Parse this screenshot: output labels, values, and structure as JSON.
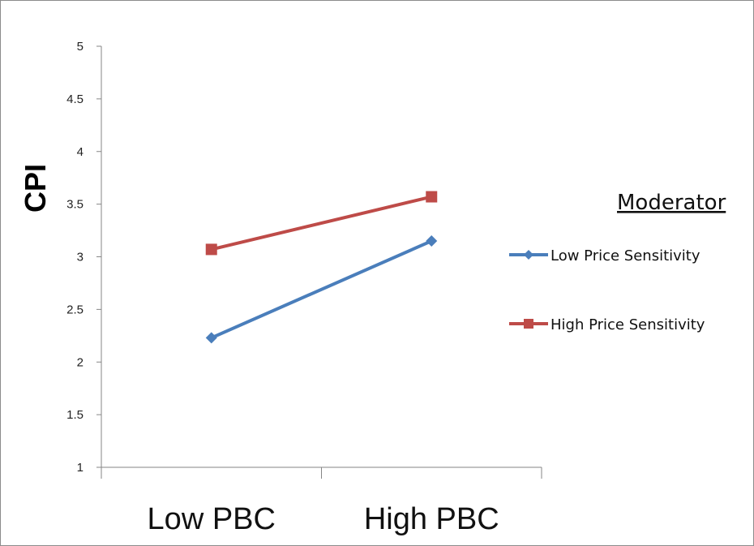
{
  "chart_data": {
    "type": "line",
    "categories": [
      "Low PBC",
      "High PBC"
    ],
    "series": [
      {
        "name": "Low Price Sensitivity",
        "values": [
          2.23,
          3.15
        ],
        "color": "#4a7ebb",
        "marker": "diamond"
      },
      {
        "name": "High Price Sensitivity",
        "values": [
          3.07,
          3.57
        ],
        "color": "#be4b48",
        "marker": "square"
      }
    ],
    "ylabel": "CPI",
    "ylim": [
      1,
      5
    ],
    "yticks": [
      1,
      1.5,
      2,
      2.5,
      3,
      3.5,
      4,
      4.5,
      5
    ],
    "grid": false,
    "legend": {
      "title": "Moderator",
      "placement": "right"
    }
  }
}
